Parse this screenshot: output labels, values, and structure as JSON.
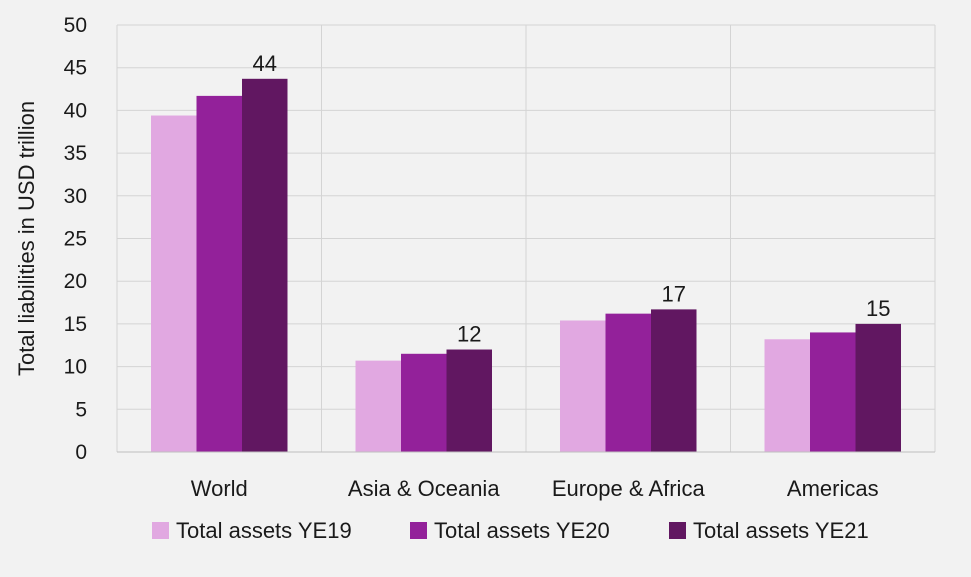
{
  "chart_data": {
    "type": "bar",
    "title": "",
    "xlabel": "",
    "ylabel": "Total liabilities in USD trillion",
    "ylim": [
      0,
      50
    ],
    "yticks": [
      0,
      5,
      10,
      15,
      20,
      25,
      30,
      35,
      40,
      45,
      50
    ],
    "grid": true,
    "legend_position": "bottom",
    "categories": [
      "World",
      "Asia & Oceania",
      "Europe & Africa",
      "Americas"
    ],
    "series": [
      {
        "name": "Total assets YE19",
        "color": "#e1a8e1",
        "values": [
          39.4,
          10.7,
          15.4,
          13.2
        ]
      },
      {
        "name": "Total assets YE20",
        "color": "#93219a",
        "values": [
          41.7,
          11.5,
          16.2,
          14.0
        ]
      },
      {
        "name": "Total assets YE21",
        "color": "#611761",
        "values": [
          43.7,
          12.0,
          16.7,
          15.0
        ]
      }
    ],
    "data_labels": [
      {
        "category": "World",
        "series": "Total assets YE21",
        "text": "44"
      },
      {
        "category": "Asia & Oceania",
        "series": "Total assets YE21",
        "text": "12"
      },
      {
        "category": "Europe & Africa",
        "series": "Total assets YE21",
        "text": "17"
      },
      {
        "category": "Americas",
        "series": "Total assets YE21",
        "text": "15"
      }
    ]
  }
}
